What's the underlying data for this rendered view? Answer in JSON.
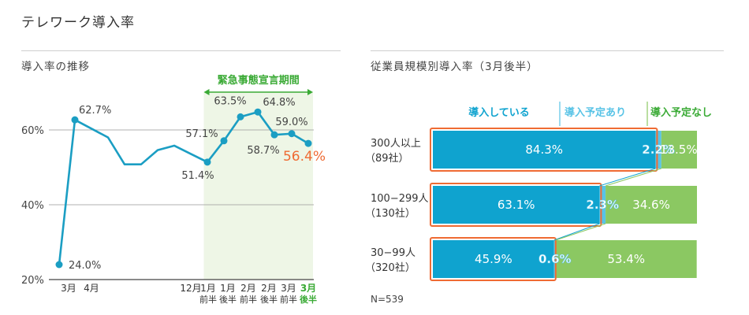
{
  "page": {
    "title": "テレワーク導入率"
  },
  "colors": {
    "line": "#1b9ec3",
    "highlight": "#ef6b33",
    "period_band": "#eef6e6",
    "green_label": "#3aaa35",
    "bar_blue": "#0fa3cf",
    "bar_light_blue": "#58c3e6",
    "bar_green": "#8bc862",
    "grid": "#888888"
  },
  "chart_data": [
    {
      "type": "line",
      "title": "導入率の推移",
      "x_tick_labels": [
        {
          "line1": "3月",
          "line2": ""
        },
        {
          "line1": "4月",
          "line2": ""
        },
        {
          "line1": "12月",
          "line2": ""
        },
        {
          "line1": "1月",
          "line2": "前半"
        },
        {
          "line1": "1月",
          "line2": "後半"
        },
        {
          "line1": "2月",
          "line2": "前半"
        },
        {
          "line1": "2月",
          "line2": "後半"
        },
        {
          "line1": "3月",
          "line2": "前半"
        },
        {
          "line1": "3月",
          "line2": "後半"
        }
      ],
      "y_ticks": [
        "20%",
        "40%",
        "60%"
      ],
      "ylim": [
        20,
        70
      ],
      "period_label": "緊急事態宣言期間",
      "points": [
        {
          "x": 0,
          "y": 24.0,
          "label": "24.0%"
        },
        {
          "x": 1,
          "y": 62.7,
          "label": "62.7%"
        },
        {
          "x": 2,
          "y": 58.0,
          "label": ""
        },
        {
          "x": 3,
          "y": 50.8,
          "label": ""
        },
        {
          "x": 4,
          "y": 50.8,
          "label": ""
        },
        {
          "x": 5,
          "y": 54.6,
          "label": ""
        },
        {
          "x": 6,
          "y": 55.8,
          "label": ""
        },
        {
          "x": 7,
          "y": 53.6,
          "label": ""
        },
        {
          "x": 8,
          "y": 51.4,
          "label": "51.4%"
        },
        {
          "x": 9,
          "y": 57.1,
          "label": "57.1%"
        },
        {
          "x": 10,
          "y": 63.5,
          "label": "63.5%"
        },
        {
          "x": 11,
          "y": 64.8,
          "label": "64.8%"
        },
        {
          "x": 12,
          "y": 58.7,
          "label": "58.7%"
        },
        {
          "x": 13,
          "y": 59.0,
          "label": "59.0%"
        },
        {
          "x": 14,
          "y": 56.4,
          "label": "56.4%"
        }
      ]
    },
    {
      "type": "bar",
      "stacked": true,
      "horizontal": true,
      "title": "従業員規模別導入率（3月後半）",
      "series": [
        {
          "name": "導入している"
        },
        {
          "name": "導入予定あり"
        },
        {
          "name": "導入予定なし"
        }
      ],
      "categories": [
        {
          "line1": "300人以上",
          "line2": "（89社）",
          "values": [
            84.3,
            2.2,
            13.5
          ],
          "labels": [
            "84.3%",
            "2.2%",
            "13.5%"
          ]
        },
        {
          "line1": "100−299人",
          "line2": "（130社）",
          "values": [
            63.1,
            2.3,
            34.6
          ],
          "labels": [
            "63.1%",
            "2.3%",
            "34.6%"
          ]
        },
        {
          "line1": "30−99人",
          "line2": "（320社）",
          "values": [
            45.9,
            0.6,
            53.4
          ],
          "labels": [
            "45.9%",
            "0.6%",
            "53.4%"
          ]
        }
      ],
      "note": "N=539"
    }
  ]
}
